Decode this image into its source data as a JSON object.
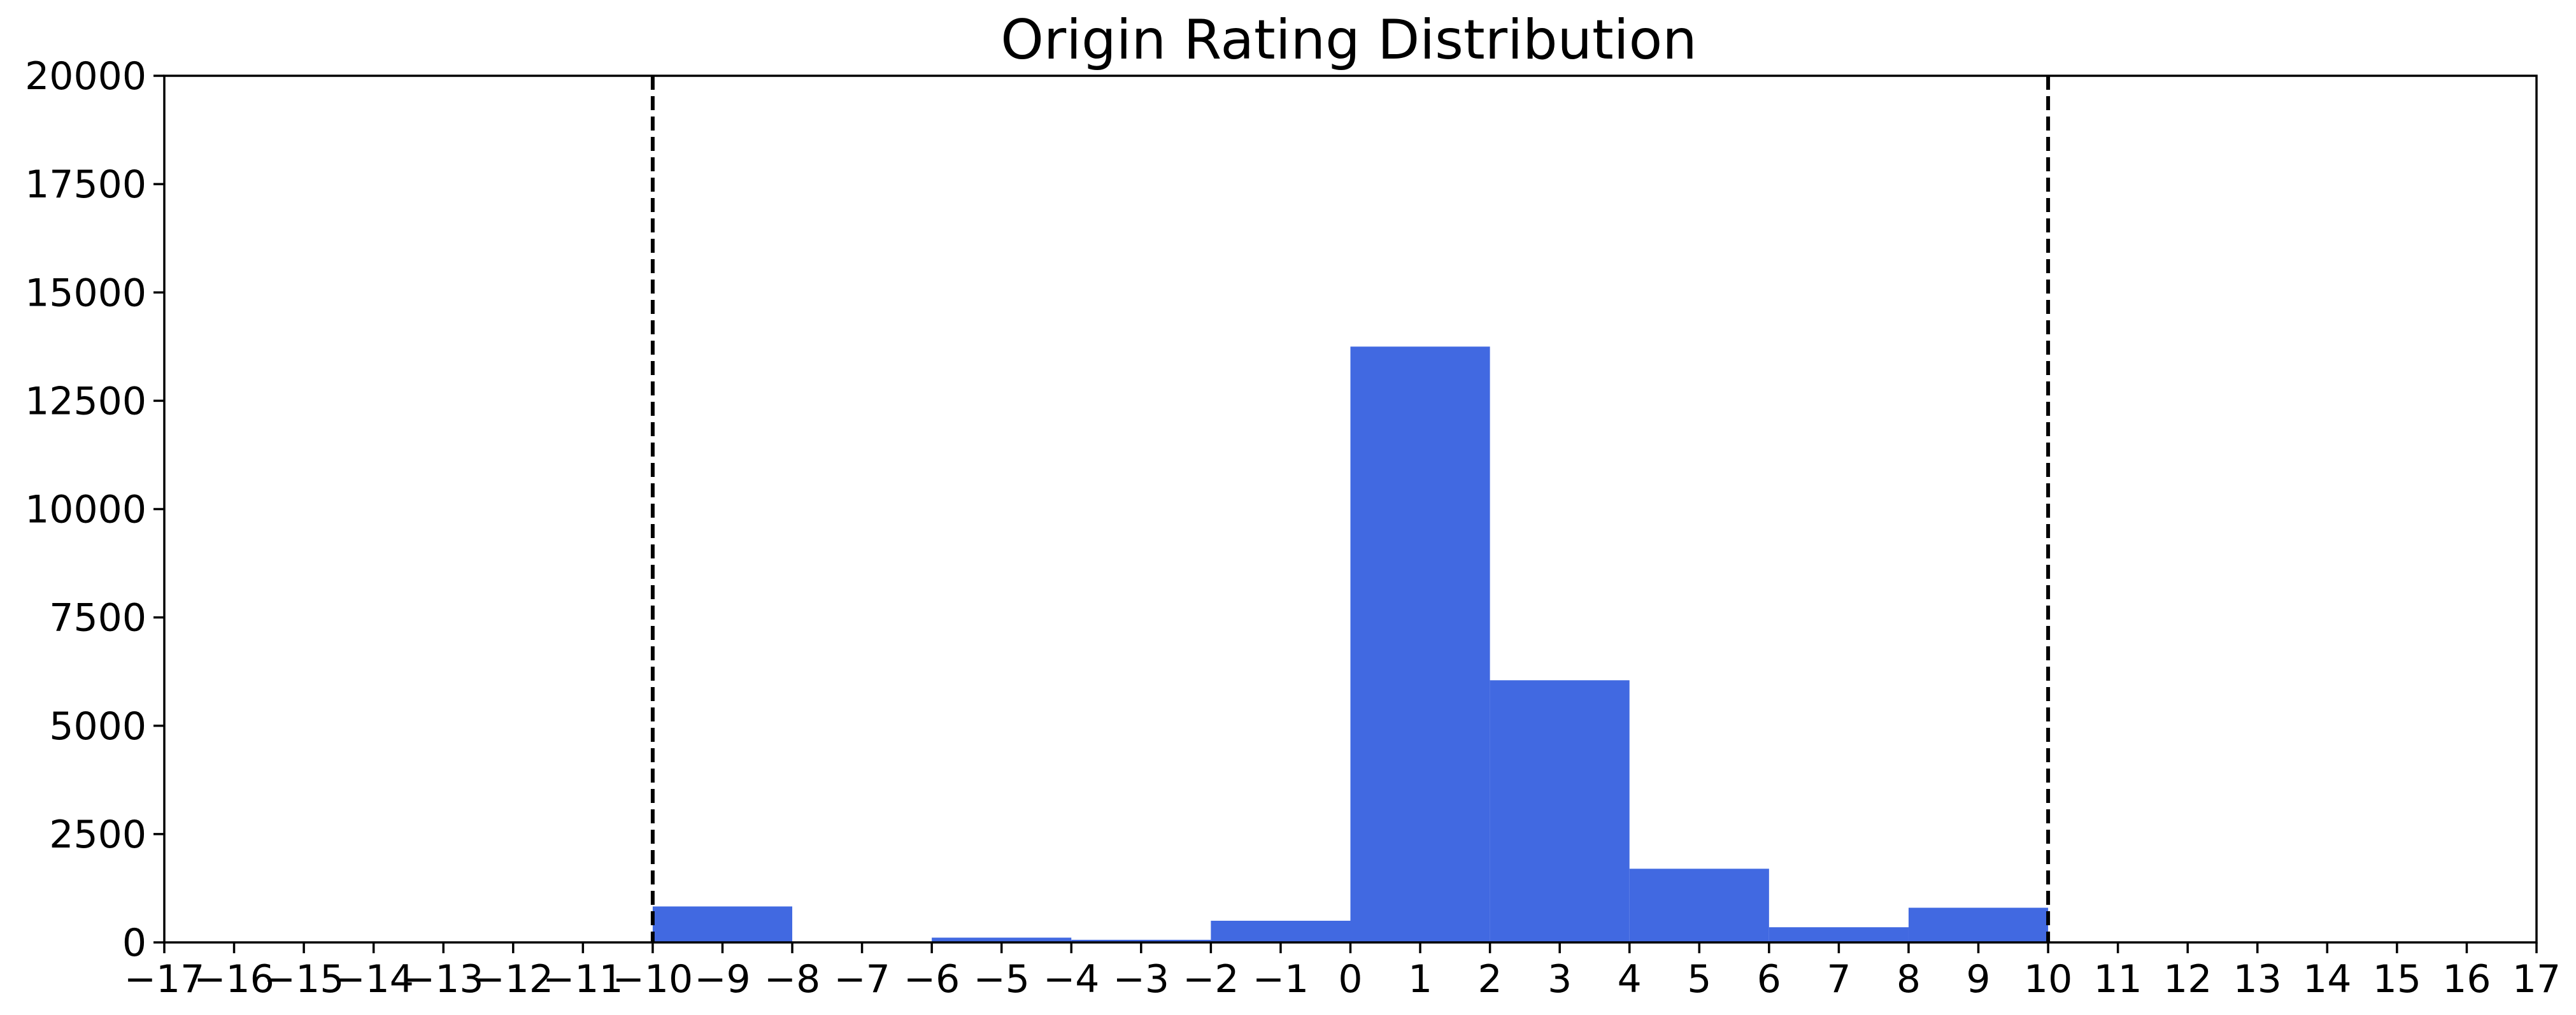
{
  "chart_data": {
    "type": "bar",
    "title": "Origin Rating Distribution",
    "xlabel": "",
    "ylabel": "",
    "xlim": [
      -17,
      17
    ],
    "ylim": [
      0,
      20000
    ],
    "x_ticks": [
      -17,
      -16,
      -15,
      -14,
      -13,
      -12,
      -11,
      -10,
      -9,
      -8,
      -7,
      -6,
      -5,
      -4,
      -3,
      -2,
      -1,
      0,
      1,
      2,
      3,
      4,
      5,
      6,
      7,
      8,
      9,
      10,
      11,
      12,
      13,
      14,
      15,
      16,
      17
    ],
    "y_ticks": [
      0,
      2500,
      5000,
      7500,
      10000,
      12500,
      15000,
      17500,
      20000
    ],
    "bins": [
      {
        "start": -10,
        "end": -8,
        "value": 830
      },
      {
        "start": -8,
        "end": -6,
        "value": 20
      },
      {
        "start": -6,
        "end": -4,
        "value": 110
      },
      {
        "start": -4,
        "end": -2,
        "value": 60
      },
      {
        "start": -2,
        "end": 0,
        "value": 500
      },
      {
        "start": 0,
        "end": 2,
        "value": 13750
      },
      {
        "start": 2,
        "end": 4,
        "value": 6050
      },
      {
        "start": 4,
        "end": 6,
        "value": 1700
      },
      {
        "start": 6,
        "end": 8,
        "value": 350
      },
      {
        "start": 8,
        "end": 10,
        "value": 800
      }
    ],
    "reference_lines": [
      -10,
      10
    ],
    "bar_color": "#4169e1",
    "grid": false,
    "legend": "none"
  }
}
